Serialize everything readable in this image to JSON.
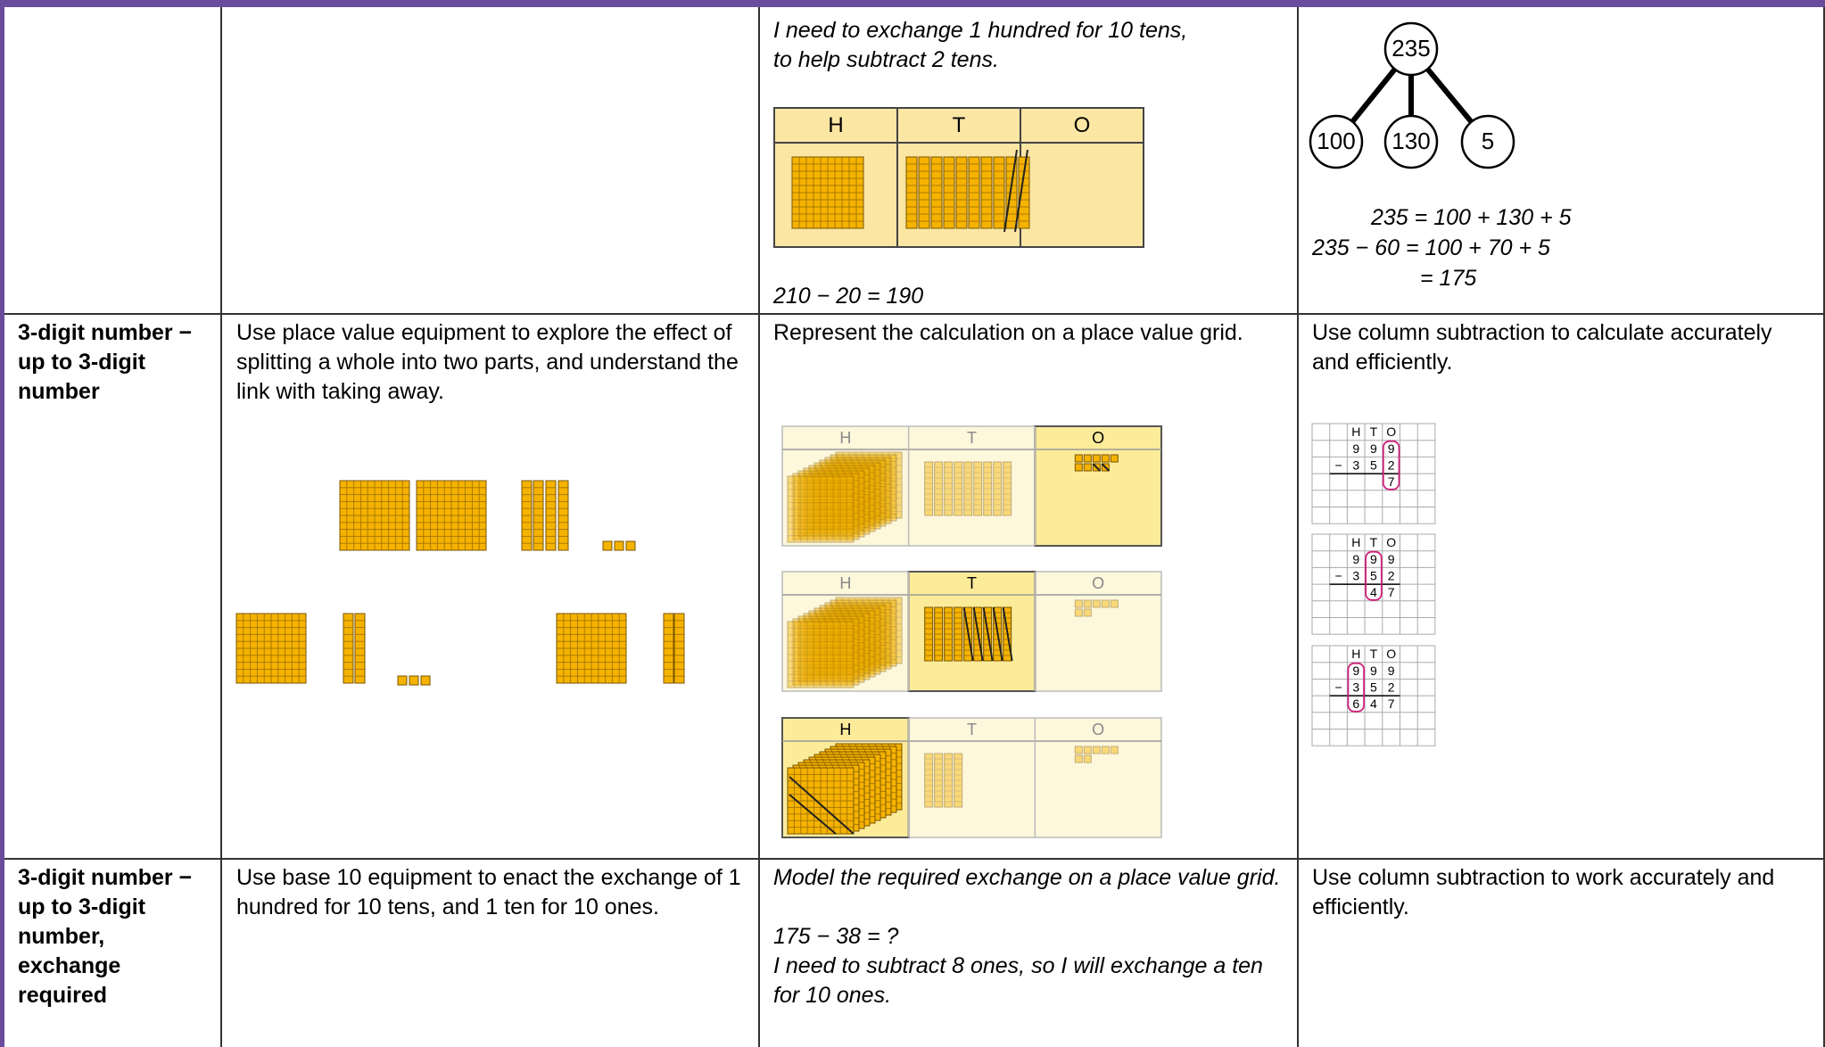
{
  "rows": [
    {
      "col3": {
        "lines": [
          "I need to exchange 1 hundred for 10 tens,",
          "to help subtract 2 tens."
        ],
        "grid": [
          "H",
          "T",
          "O"
        ],
        "equation": "210 − 20 = 190"
      },
      "col4": {
        "bond": {
          "whole": "235",
          "parts": [
            "100",
            "130",
            "5"
          ]
        },
        "equations": [
          "235 = 100 + 130 + 5",
          "235 − 60 = 100 + 70 + 5",
          "= 175"
        ]
      }
    },
    {
      "label": "3-digit number − up to 3-digit number",
      "col2": "Use place value equipment to explore the effect of splitting a whole into two parts, and understand the link with taking away.",
      "col3": {
        "text": "Represent the calculation on a place value grid.",
        "grids": [
          [
            "H",
            "T",
            "O"
          ],
          [
            "H",
            "T",
            "O"
          ],
          [
            "H",
            "T",
            "O"
          ]
        ]
      },
      "col4": {
        "text": "Use column subtraction to calculate accurately and efficiently.",
        "sums": [
          {
            "headers": [
              "H",
              "T",
              "O"
            ],
            "top": [
              "9",
              "9",
              "9"
            ],
            "sign": "−",
            "bottom": [
              "3",
              "5",
              "2"
            ],
            "answer": [
              "7"
            ]
          },
          {
            "headers": [
              "H",
              "T",
              "O"
            ],
            "top": [
              "9",
              "9",
              "9"
            ],
            "sign": "−",
            "bottom": [
              "3",
              "5",
              "2"
            ],
            "answer": [
              "4",
              "7"
            ]
          },
          {
            "headers": [
              "H",
              "T",
              "O"
            ],
            "top": [
              "9",
              "9",
              "9"
            ],
            "sign": "−",
            "bottom": [
              "3",
              "5",
              "2"
            ],
            "answer": [
              "6",
              "4",
              "7"
            ]
          }
        ]
      }
    },
    {
      "label": "3-digit number − up to 3-digit number, exchange required",
      "col2": "Use base 10 equipment to enact the exchange of 1 hundred for 10 tens, and 1 ten for 10 ones.",
      "col3": {
        "lines": [
          "Model the required exchange on a place value grid.",
          "175 − 38 = ?",
          "I need to subtract 8 ones, so I will exchange a ten for 10 ones."
        ]
      },
      "col4": {
        "text": "Use column subtraction to work accurately and efficiently."
      }
    }
  ]
}
